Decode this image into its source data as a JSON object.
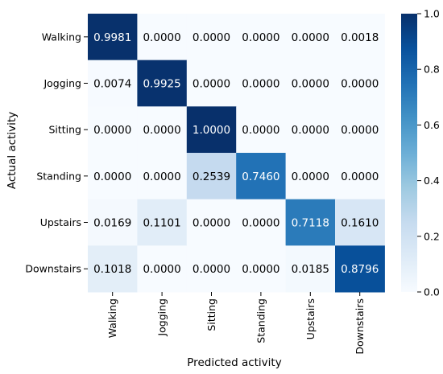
{
  "chart_data": {
    "type": "heatmap",
    "title": "",
    "xlabel": "Predicted activity",
    "ylabel": "Actual activity",
    "x_categories": [
      "Walking",
      "Jogging",
      "Sitting",
      "Standing",
      "Upstairs",
      "Downstairs"
    ],
    "y_categories": [
      "Walking",
      "Jogging",
      "Sitting",
      "Standing",
      "Upstairs",
      "Downstairs"
    ],
    "values": [
      [
        0.9981,
        0.0,
        0.0,
        0.0,
        0.0,
        0.0018
      ],
      [
        0.0074,
        0.9925,
        0.0,
        0.0,
        0.0,
        0.0
      ],
      [
        0.0,
        0.0,
        1.0,
        0.0,
        0.0,
        0.0
      ],
      [
        0.0,
        0.0,
        0.2539,
        0.746,
        0.0,
        0.0
      ],
      [
        0.0169,
        0.1101,
        0.0,
        0.0,
        0.7118,
        0.161
      ],
      [
        0.1018,
        0.0,
        0.0,
        0.0,
        0.0185,
        0.8796
      ]
    ],
    "value_format": "0.0000",
    "colormap": "Blues",
    "vmin": 0.0,
    "vmax": 1.0,
    "colorbar_ticks": [
      "0.0",
      "0.2",
      "0.4",
      "0.6",
      "0.8",
      "1.0"
    ],
    "colorbar_tick_values": [
      0.0,
      0.2,
      0.4,
      0.6,
      0.8,
      1.0
    ],
    "colorbar_placement": "right",
    "colors": {
      "low": "#f7fbff",
      "high": "#08306b",
      "text_dark": "#000000",
      "text_light": "#ffffff"
    }
  }
}
